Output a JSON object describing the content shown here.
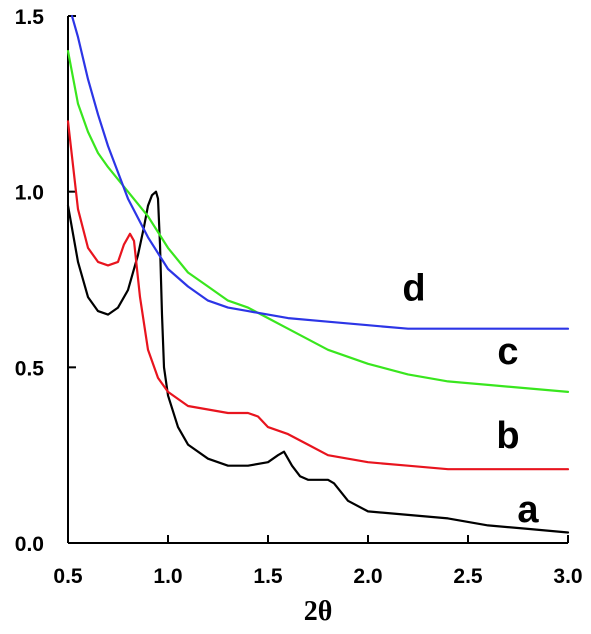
{
  "chart_data": {
    "type": "line",
    "title": "",
    "xlabel": "2θ",
    "ylabel": "",
    "xlim": [
      0.5,
      3.0
    ],
    "ylim": [
      0.0,
      1.5
    ],
    "x_ticks": [
      "0.5",
      "1.0",
      "1.5",
      "2.0",
      "2.5",
      "3.0"
    ],
    "y_ticks": [
      "0.0",
      "0.5",
      "1.0",
      "1.5"
    ],
    "grid": false,
    "legend": "inline labels at right end of curves",
    "series": [
      {
        "name": "a",
        "color": "#000000",
        "x": [
          0.5,
          0.55,
          0.6,
          0.65,
          0.7,
          0.75,
          0.8,
          0.85,
          0.88,
          0.9,
          0.92,
          0.94,
          0.95,
          0.96,
          0.97,
          0.98,
          1.0,
          1.05,
          1.1,
          1.2,
          1.3,
          1.4,
          1.5,
          1.55,
          1.58,
          1.62,
          1.66,
          1.7,
          1.75,
          1.8,
          1.83,
          1.9,
          2.0,
          2.2,
          2.4,
          2.6,
          2.8,
          3.0
        ],
        "y": [
          0.96,
          0.8,
          0.7,
          0.66,
          0.65,
          0.67,
          0.72,
          0.82,
          0.9,
          0.96,
          0.99,
          1.0,
          0.98,
          0.85,
          0.65,
          0.5,
          0.42,
          0.33,
          0.28,
          0.24,
          0.22,
          0.22,
          0.23,
          0.25,
          0.26,
          0.22,
          0.19,
          0.18,
          0.18,
          0.18,
          0.17,
          0.12,
          0.09,
          0.08,
          0.07,
          0.05,
          0.04,
          0.03
        ]
      },
      {
        "name": "b",
        "color": "#e8141e",
        "x": [
          0.5,
          0.55,
          0.6,
          0.65,
          0.7,
          0.75,
          0.78,
          0.81,
          0.83,
          0.86,
          0.9,
          0.95,
          1.0,
          1.1,
          1.2,
          1.3,
          1.4,
          1.45,
          1.5,
          1.6,
          1.7,
          1.8,
          2.0,
          2.2,
          2.4,
          2.6,
          2.8,
          3.0
        ],
        "y": [
          1.2,
          0.95,
          0.84,
          0.8,
          0.79,
          0.8,
          0.85,
          0.88,
          0.86,
          0.7,
          0.55,
          0.47,
          0.43,
          0.39,
          0.38,
          0.37,
          0.37,
          0.36,
          0.33,
          0.31,
          0.28,
          0.25,
          0.23,
          0.22,
          0.21,
          0.21,
          0.21,
          0.21
        ]
      },
      {
        "name": "c",
        "color": "#39e61e",
        "x": [
          0.5,
          0.55,
          0.6,
          0.65,
          0.7,
          0.8,
          0.9,
          1.0,
          1.1,
          1.2,
          1.3,
          1.4,
          1.5,
          1.6,
          1.8,
          2.0,
          2.2,
          2.4,
          2.6,
          2.8,
          3.0
        ],
        "y": [
          1.4,
          1.25,
          1.17,
          1.11,
          1.07,
          1.0,
          0.93,
          0.84,
          0.77,
          0.73,
          0.69,
          0.67,
          0.64,
          0.61,
          0.55,
          0.51,
          0.48,
          0.46,
          0.45,
          0.44,
          0.43
        ]
      },
      {
        "name": "d",
        "color": "#2c35e6",
        "x": [
          0.52,
          0.55,
          0.6,
          0.65,
          0.7,
          0.8,
          0.9,
          1.0,
          1.1,
          1.2,
          1.3,
          1.4,
          1.5,
          1.6,
          1.8,
          2.0,
          2.2,
          2.4,
          2.6,
          2.8,
          3.0
        ],
        "y": [
          1.5,
          1.44,
          1.32,
          1.22,
          1.13,
          0.98,
          0.87,
          0.78,
          0.73,
          0.69,
          0.67,
          0.66,
          0.65,
          0.64,
          0.63,
          0.62,
          0.61,
          0.61,
          0.61,
          0.61,
          0.61
        ]
      }
    ],
    "series_labels": [
      {
        "series": "a",
        "text": "a",
        "x": 2.8,
        "y": 0.06
      },
      {
        "series": "b",
        "text": "b",
        "x": 2.7,
        "y": 0.27
      },
      {
        "series": "c",
        "text": "c",
        "x": 2.7,
        "y": 0.51
      },
      {
        "series": "d",
        "text": "d",
        "x": 2.23,
        "y": 0.69
      }
    ]
  }
}
